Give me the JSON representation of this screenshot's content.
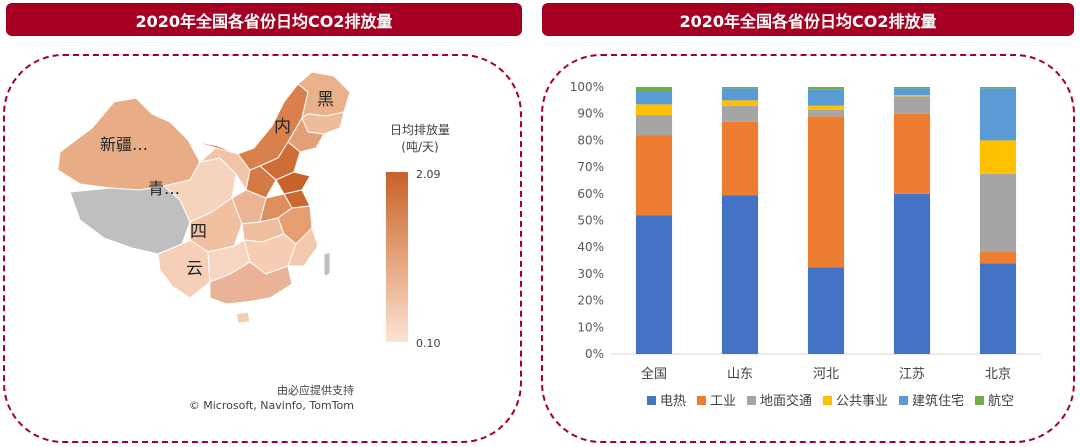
{
  "left_panel": {
    "title": "2020年全国各省份日均CO2排放量",
    "legend_title_line1": "日均排放量",
    "legend_title_line2": "(吨/天)",
    "legend_max": "2.09",
    "legend_min": "0.10",
    "map_labels": [
      "黑",
      "内",
      "新疆…",
      "青…",
      "四",
      "云"
    ],
    "credit_line1": "由必应提供支持",
    "credit_line2": "© Microsoft, Navinfo, TomTom",
    "colors": {
      "high": "#c8612a",
      "mid": "#e4a27a",
      "low": "#fbe3d3",
      "nodata": "#bfbfbf"
    }
  },
  "right_panel": {
    "title": "2020年全国各省份日均CO2排放量"
  },
  "chart_data": {
    "type": "bar",
    "stacked": true,
    "categories": [
      "全国",
      "山东",
      "河北",
      "江苏",
      "北京"
    ],
    "series": [
      {
        "name": "电热",
        "color": "#4472c4",
        "values": [
          52,
          59.5,
          32.5,
          60,
          34
        ]
      },
      {
        "name": "工业",
        "color": "#ed7d31",
        "values": [
          30,
          27.5,
          56.5,
          30,
          4.5
        ]
      },
      {
        "name": "地面交通",
        "color": "#a5a5a5",
        "values": [
          7.5,
          6,
          2.5,
          6.5,
          29
        ]
      },
      {
        "name": "公共事业",
        "color": "#ffc000",
        "values": [
          4,
          2,
          1.5,
          0.5,
          12.5
        ]
      },
      {
        "name": "建筑住宅",
        "color": "#5b9bd5",
        "values": [
          5,
          4.5,
          6,
          2.5,
          19.5
        ]
      },
      {
        "name": "航空",
        "color": "#70ad47",
        "values": [
          1.5,
          0.5,
          1,
          0.5,
          0.5
        ]
      }
    ],
    "yticks": [
      "0%",
      "10%",
      "20%",
      "30%",
      "40%",
      "50%",
      "60%",
      "70%",
      "80%",
      "90%",
      "100%"
    ],
    "ylim": [
      0,
      100
    ],
    "legend_position": "bottom",
    "grid": false
  }
}
